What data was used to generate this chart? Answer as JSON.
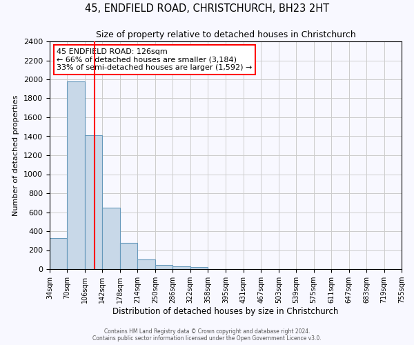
{
  "title": "45, ENDFIELD ROAD, CHRISTCHURCH, BH23 2HT",
  "subtitle": "Size of property relative to detached houses in Christchurch",
  "xlabel": "Distribution of detached houses by size in Christchurch",
  "ylabel": "Number of detached properties",
  "bin_edges": [
    34,
    70,
    106,
    142,
    178,
    214,
    250,
    286,
    322,
    358,
    395,
    431,
    467,
    503,
    539,
    575,
    611,
    647,
    683,
    719,
    755
  ],
  "bar_heights": [
    325,
    1975,
    1410,
    650,
    275,
    100,
    45,
    30,
    20,
    0,
    0,
    0,
    0,
    0,
    0,
    0,
    0,
    0,
    0,
    0
  ],
  "bar_color": "#c8d8e8",
  "bar_edgecolor": "#6699bb",
  "grid_color": "#cccccc",
  "vline_x": 126,
  "vline_color": "red",
  "annotation_line1": "45 ENDFIELD ROAD: 126sqm",
  "annotation_line2": "← 66% of detached houses are smaller (3,184)",
  "annotation_line3": "33% of semi-detached houses are larger (1,592) →",
  "annotation_box_color": "white",
  "annotation_box_edgecolor": "red",
  "ylim": [
    0,
    2400
  ],
  "yticks": [
    0,
    200,
    400,
    600,
    800,
    1000,
    1200,
    1400,
    1600,
    1800,
    2000,
    2200,
    2400
  ],
  "footer_line1": "Contains HM Land Registry data © Crown copyright and database right 2024.",
  "footer_line2": "Contains public sector information licensed under the Open Government Licence v3.0.",
  "background_color": "#f8f8ff",
  "title_fontsize": 10.5,
  "subtitle_fontsize": 9
}
